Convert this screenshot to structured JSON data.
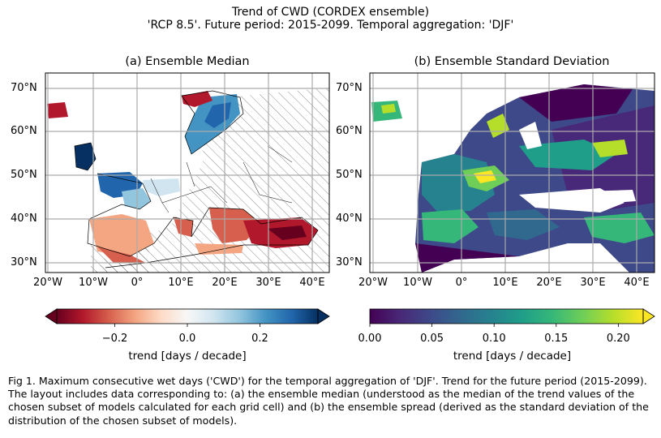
{
  "figure": {
    "title_line1": "Trend of CWD (CORDEX ensemble)",
    "title_line2": "'RCP 8.5'. Future period: 2015-2099. Temporal aggregation: 'DJF'",
    "caption": "Fig 1. Maximum consecutive wet days ('CWD') for the temporal aggregation of 'DJF'. Trend for the future period (2015-2099). The layout includes data corresponding to: (a) the ensemble median (understood as the median of the trend values of the chosen subset of models calculated for each grid cell) and (b) the ensemble spread (derived as the standard deviation of the distribution of the chosen subset of models)."
  },
  "axes": {
    "lat_labels": [
      "70°N",
      "60°N",
      "50°N",
      "40°N",
      "30°N"
    ],
    "lon_labels": [
      "20°W",
      "10°W",
      "0°",
      "10°E",
      "20°E",
      "30°E",
      "40°E"
    ]
  },
  "panels": [
    {
      "title": "(a) Ensemble Median",
      "colormap": "RdBu",
      "colorbar": {
        "label": "trend [days / decade]",
        "ticks": [
          "−0.2",
          "0.0",
          "0.2"
        ],
        "range": [
          -0.36,
          0.36
        ],
        "extend": "both",
        "colors": [
          "#67001f",
          "#b2182b",
          "#d6604d",
          "#f4a582",
          "#fddbc7",
          "#f7f7f7",
          "#d1e5f0",
          "#92c5de",
          "#4393c3",
          "#2166ac",
          "#053061"
        ]
      },
      "hatching": "non-significant areas hatched"
    },
    {
      "title": "(b) Ensemble Standard Deviation",
      "colormap": "viridis",
      "colorbar": {
        "label": "trend [days / decade]",
        "ticks": [
          "0.00",
          "0.05",
          "0.10",
          "0.15",
          "0.20"
        ],
        "range": [
          0.0,
          0.22
        ],
        "extend": "max",
        "colors": [
          "#440154",
          "#482878",
          "#3e4989",
          "#31688e",
          "#26828e",
          "#1f9e89",
          "#35b779",
          "#6ece58",
          "#b5de2b",
          "#fde725"
        ]
      }
    }
  ]
}
